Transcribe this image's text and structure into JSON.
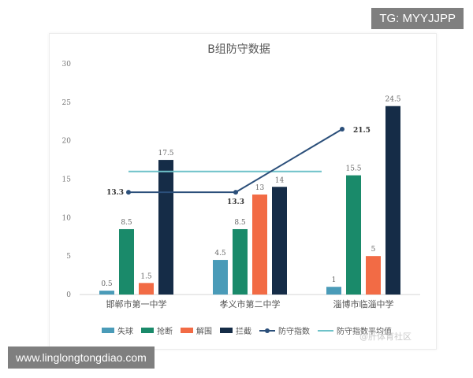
{
  "overlay": {
    "tg_label": "TG: MYYJJPP",
    "site_label": "www.linglongtongdiao.com",
    "watermark": "@肝体育社区"
  },
  "chart_data": {
    "type": "bar",
    "title": "B组防守数据",
    "categories": [
      "邯郸市第一中学",
      "孝义市第二中学",
      "淄博市临淄中学"
    ],
    "ylim": [
      0,
      30
    ],
    "yticks": [
      0,
      5,
      10,
      15,
      20,
      25,
      30
    ],
    "grid": false,
    "legend_position": "bottom",
    "series": [
      {
        "name": "失球",
        "kind": "bar",
        "color": "#4a9bb8",
        "values": [
          0.5,
          4.5,
          1
        ],
        "labels": [
          "0.5",
          "4.5",
          "1"
        ]
      },
      {
        "name": "抢断",
        "kind": "bar",
        "color": "#1a8a6a",
        "values": [
          8.5,
          8.5,
          15.5
        ],
        "labels": [
          "8.5",
          "8.5",
          "15.5"
        ]
      },
      {
        "name": "解围",
        "kind": "bar",
        "color": "#f26b45",
        "values": [
          1.5,
          13,
          5
        ],
        "labels": [
          "1.5",
          "13",
          "5"
        ]
      },
      {
        "name": "拦截",
        "kind": "bar",
        "color": "#152c47",
        "values": [
          17.5,
          14,
          24.5
        ],
        "labels": [
          "17.5",
          "14",
          "24.5"
        ]
      },
      {
        "name": "防守指数",
        "kind": "line",
        "color": "#2b4f7a",
        "values": [
          13.3,
          13.3,
          21.5
        ],
        "labels": [
          "13.3",
          "13.3",
          "21.5"
        ]
      },
      {
        "name": "防守指数平均值",
        "kind": "hline",
        "color": "#6ec2c9",
        "value": 16
      }
    ]
  }
}
